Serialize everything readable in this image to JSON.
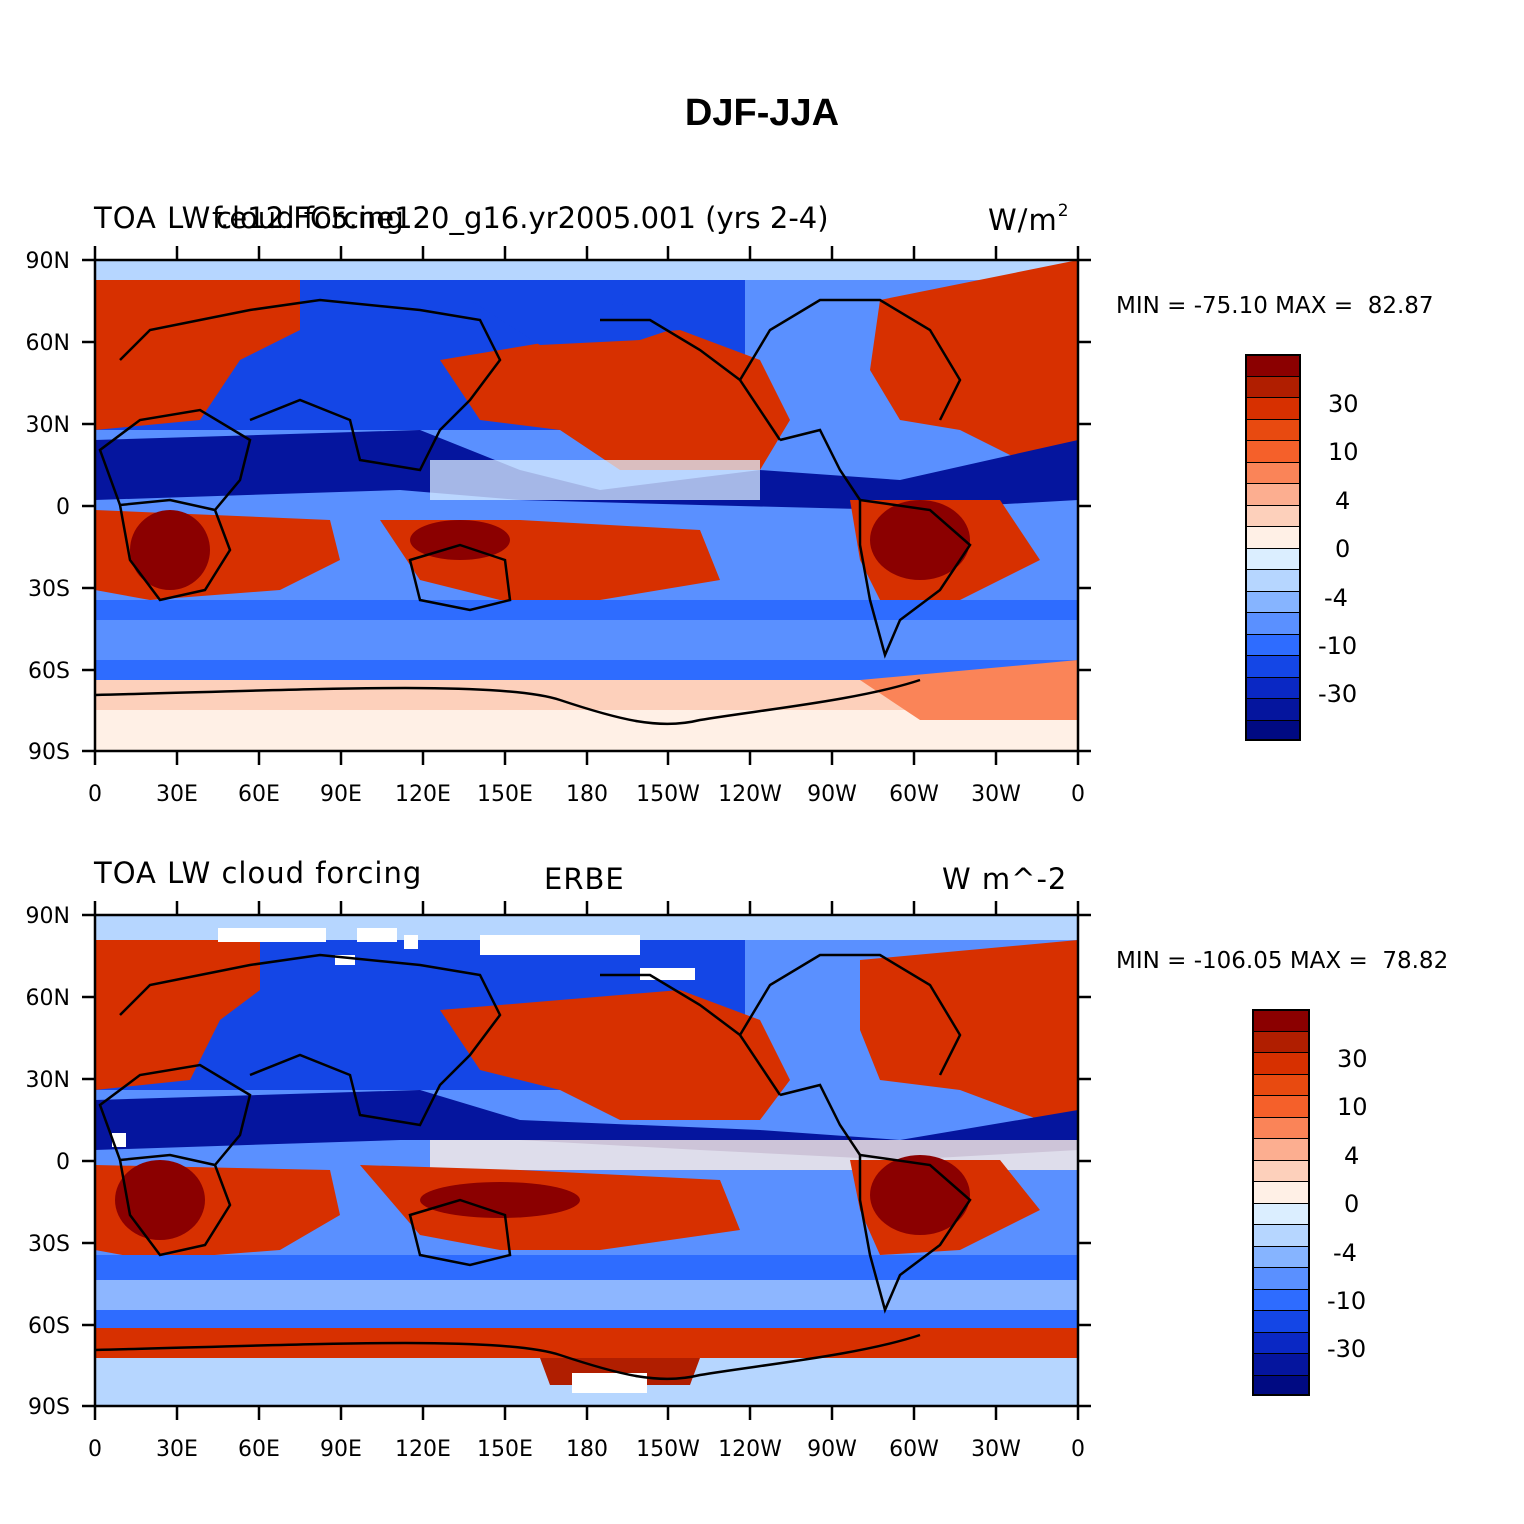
{
  "figure": {
    "title": "DJF-JJA"
  },
  "panels": [
    {
      "left_text": "TOA LW",
      "overlay_text_a": "cloud forcing",
      "overlay_text_b": "f.e12.FC5.ne120_g16.yr2005.001 (yrs 2-4)",
      "units_main": "W/m",
      "units_sup": "2",
      "stats": "MIN = -75.10 MAX =  82.87",
      "lat_ticks": [
        "90N",
        "60N",
        "30N",
        "0",
        "30S",
        "60S",
        "90S"
      ],
      "lon_ticks": [
        "0",
        "30E",
        "60E",
        "90E",
        "120E",
        "150E",
        "180",
        "150W",
        "120W",
        "90W",
        "60W",
        "30W",
        "0"
      ],
      "colorbar_labels": [
        "30",
        "10",
        "4",
        "0",
        "-4",
        "-10",
        "-30"
      ]
    },
    {
      "left_text": "TOA LW cloud forcing",
      "center_text": "ERBE",
      "units": "W m^-2",
      "stats": "MIN = -106.05 MAX =  78.82",
      "lat_ticks": [
        "90N",
        "60N",
        "30N",
        "0",
        "30S",
        "60S",
        "90S"
      ],
      "lon_ticks": [
        "0",
        "30E",
        "60E",
        "90E",
        "120E",
        "150E",
        "180",
        "150W",
        "120W",
        "90W",
        "60W",
        "30W",
        "0"
      ],
      "colorbar_labels": [
        "30",
        "10",
        "4",
        "0",
        "-4",
        "-10",
        "-30"
      ]
    }
  ],
  "colorbar": {
    "colors": [
      "#8b0000",
      "#b01e00",
      "#d73000",
      "#e84a10",
      "#f5602a",
      "#fa8458",
      "#fcae90",
      "#fdd0bb",
      "#fff0e6",
      "#dbeeff",
      "#b6d6ff",
      "#86b4ff",
      "#5a90ff",
      "#2e6cff",
      "#1446e6",
      "#0a28c4",
      "#05159e",
      "#000a82"
    ]
  }
}
